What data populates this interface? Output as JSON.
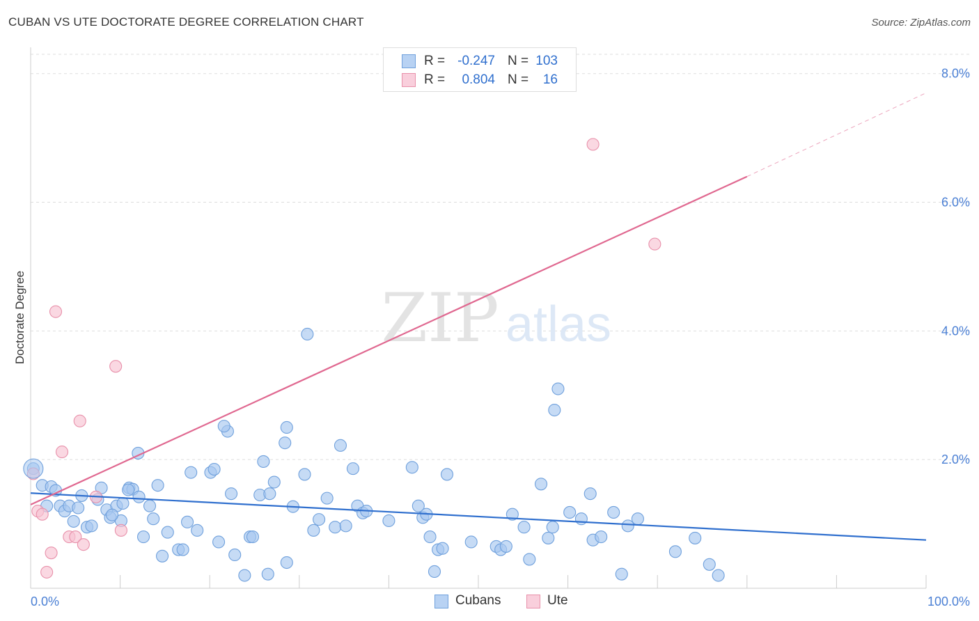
{
  "header": {
    "title": "CUBAN VS UTE DOCTORATE DEGREE CORRELATION CHART",
    "source": "Source: ZipAtlas.com"
  },
  "watermark": {
    "zip": "ZIP",
    "atlas": "atlas"
  },
  "colors": {
    "cubans_fill": "#a8c8f0",
    "cubans_stroke": "#6fa0dc",
    "cubans_line": "#2f6fce",
    "ute_fill": "#f7c3d2",
    "ute_stroke": "#e890aa",
    "ute_line": "#e06890",
    "axis_label": "#4a7fd4",
    "grid": "#dddddd"
  },
  "stats": {
    "rows": [
      {
        "r_label": "R =",
        "r_value": "-0.247",
        "n_label": "N =",
        "n_value": "103"
      },
      {
        "r_label": "R =",
        "r_value": "0.804",
        "n_label": "N =",
        "n_value": "16"
      }
    ]
  },
  "legend": {
    "items": [
      {
        "label": "Cubans"
      },
      {
        "label": "Ute"
      }
    ]
  },
  "chart_data": {
    "type": "scatter",
    "title": "CUBAN VS UTE DOCTORATE DEGREE CORRELATION CHART",
    "xlabel": "",
    "ylabel": "Doctorate Degree",
    "xlim": [
      0,
      100
    ],
    "ylim": [
      0,
      8.3
    ],
    "x_tick_labels": [
      {
        "value": 0,
        "label": "0.0%"
      },
      {
        "value": 100,
        "label": "100.0%"
      }
    ],
    "y_tick_labels": [
      {
        "value": 2,
        "label": "2.0%"
      },
      {
        "value": 4,
        "label": "4.0%"
      },
      {
        "value": 6,
        "label": "6.0%"
      },
      {
        "value": 8,
        "label": "8.0%"
      }
    ],
    "grid": true,
    "legend_position": "bottom-center",
    "series": [
      {
        "name": "Cubans",
        "trend": {
          "x0": 0,
          "y0": 1.48,
          "x1": 100,
          "y1": 0.75
        },
        "points": [
          [
            0.3,
            1.86
          ],
          [
            1.3,
            1.6
          ],
          [
            2.3,
            1.58
          ],
          [
            2.8,
            1.52
          ],
          [
            1.8,
            1.28
          ],
          [
            3.3,
            1.28
          ],
          [
            3.8,
            1.2
          ],
          [
            4.3,
            1.28
          ],
          [
            4.8,
            1.04
          ],
          [
            5.3,
            1.25
          ],
          [
            5.7,
            1.44
          ],
          [
            6.3,
            0.95
          ],
          [
            6.8,
            0.97
          ],
          [
            7.5,
            1.38
          ],
          [
            7.9,
            1.56
          ],
          [
            8.5,
            1.22
          ],
          [
            8.9,
            1.1
          ],
          [
            9.6,
            1.28
          ],
          [
            10.1,
            1.05
          ],
          [
            10.3,
            1.32
          ],
          [
            11.0,
            1.56
          ],
          [
            11.4,
            1.54
          ],
          [
            12.1,
            1.42
          ],
          [
            12.6,
            0.8
          ],
          [
            13.3,
            1.28
          ],
          [
            13.7,
            1.08
          ],
          [
            14.2,
            1.6
          ],
          [
            14.7,
            0.5
          ],
          [
            15.3,
            0.87
          ],
          [
            16.5,
            0.6
          ],
          [
            17.0,
            0.6
          ],
          [
            17.5,
            1.03
          ],
          [
            17.9,
            1.8
          ],
          [
            18.6,
            0.9
          ],
          [
            20.1,
            1.8
          ],
          [
            20.5,
            1.85
          ],
          [
            21.0,
            0.72
          ],
          [
            22.0,
            2.44
          ],
          [
            22.4,
            1.47
          ],
          [
            22.8,
            0.52
          ],
          [
            23.9,
            0.2
          ],
          [
            24.5,
            0.8
          ],
          [
            25.6,
            1.45
          ],
          [
            26.0,
            1.97
          ],
          [
            26.5,
            0.22
          ],
          [
            27.2,
            1.65
          ],
          [
            28.4,
            2.26
          ],
          [
            28.6,
            0.4
          ],
          [
            29.3,
            1.27
          ],
          [
            30.6,
            1.77
          ],
          [
            31.6,
            0.9
          ],
          [
            32.2,
            1.07
          ],
          [
            33.1,
            1.4
          ],
          [
            34.0,
            0.95
          ],
          [
            34.6,
            2.22
          ],
          [
            35.2,
            0.97
          ],
          [
            36.0,
            1.86
          ],
          [
            36.5,
            1.28
          ],
          [
            37.1,
            1.17
          ],
          [
            37.5,
            1.2
          ],
          [
            40.0,
            1.05
          ],
          [
            42.6,
            1.88
          ],
          [
            43.3,
            1.28
          ],
          [
            43.8,
            1.1
          ],
          [
            44.2,
            1.15
          ],
          [
            44.6,
            0.8
          ],
          [
            45.1,
            0.26
          ],
          [
            45.5,
            0.6
          ],
          [
            46.0,
            0.62
          ],
          [
            46.5,
            1.77
          ],
          [
            49.2,
            0.72
          ],
          [
            52.0,
            0.65
          ],
          [
            52.5,
            0.6
          ],
          [
            53.1,
            0.65
          ],
          [
            53.8,
            1.15
          ],
          [
            55.1,
            0.95
          ],
          [
            55.7,
            0.45
          ],
          [
            57.0,
            1.62
          ],
          [
            57.8,
            0.78
          ],
          [
            58.5,
            2.77
          ],
          [
            58.9,
            3.1
          ],
          [
            60.2,
            1.18
          ],
          [
            61.5,
            1.08
          ],
          [
            62.5,
            1.47
          ],
          [
            62.8,
            0.75
          ],
          [
            63.7,
            0.8
          ],
          [
            65.1,
            1.18
          ],
          [
            66.0,
            0.22
          ],
          [
            66.7,
            0.97
          ],
          [
            67.8,
            1.08
          ],
          [
            72.0,
            0.57
          ],
          [
            74.2,
            0.78
          ],
          [
            75.8,
            0.37
          ],
          [
            76.8,
            0.2
          ],
          [
            9.1,
            1.14
          ],
          [
            10.9,
            1.53
          ],
          [
            12.0,
            2.1
          ],
          [
            21.6,
            2.52
          ],
          [
            24.8,
            0.8
          ],
          [
            26.7,
            1.47
          ],
          [
            28.6,
            2.5
          ],
          [
            30.9,
            3.95
          ],
          [
            58.3,
            0.95
          ]
        ]
      },
      {
        "name": "Ute",
        "trend": {
          "x0": 0,
          "y0": 1.3,
          "x1": 80,
          "y1": 6.4,
          "dash_to": {
            "x": 100,
            "y": 7.7
          }
        },
        "points": [
          [
            0.3,
            1.78
          ],
          [
            0.8,
            1.2
          ],
          [
            1.3,
            1.15
          ],
          [
            1.8,
            0.25
          ],
          [
            2.3,
            0.55
          ],
          [
            2.8,
            4.3
          ],
          [
            3.5,
            2.12
          ],
          [
            4.3,
            0.8
          ],
          [
            5.0,
            0.8
          ],
          [
            5.5,
            2.6
          ],
          [
            5.9,
            0.68
          ],
          [
            7.3,
            1.42
          ],
          [
            9.5,
            3.45
          ],
          [
            10.1,
            0.9
          ],
          [
            62.8,
            6.9
          ],
          [
            69.7,
            5.35
          ]
        ]
      }
    ]
  }
}
